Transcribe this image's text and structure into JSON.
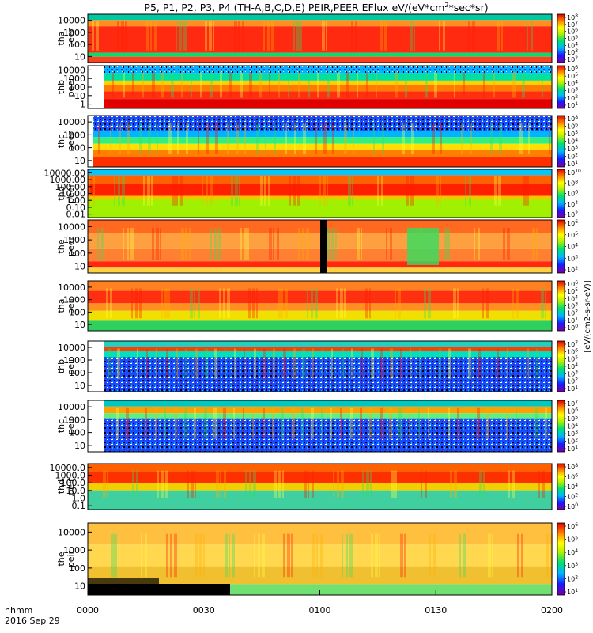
{
  "title": "P5, P1, P2, P3, P4 (TH-A,B,C,D,E) PEIR,PEER EFlux eV/(eV*cm",
  "title_sup": "2",
  "title_tail": "*sec*sr)",
  "colorbar_label": "[eV/(cm2-s-sr-eV)]",
  "time_axis": {
    "label_line1": "hhmm",
    "label_line2": "2016 Sep 29",
    "ticks": [
      "0000",
      "0030",
      "0100",
      "0130",
      "0200"
    ]
  },
  "panels": [
    {
      "probe": "tha",
      "species": "peer",
      "yticks": [
        "10",
        "100",
        "1000",
        "10000"
      ],
      "cbar_ticks": [
        "10",
        "10",
        "10",
        "10",
        "10",
        "10",
        "10"
      ],
      "cbar_exps": [
        "2",
        "3",
        "4",
        "5",
        "6",
        "7",
        "8"
      ]
    },
    {
      "probe": "thb",
      "species": "peer",
      "yticks": [
        "1",
        "10",
        "100",
        "1000",
        "10000"
      ],
      "cbar_ticks": [
        "10",
        "10",
        "10",
        "10",
        "10",
        "10"
      ],
      "cbar_exps": [
        "1",
        "2",
        "3",
        "4",
        "5",
        "6"
      ]
    },
    {
      "probe": "thc",
      "species": "peer",
      "yticks": [
        "10",
        "100",
        "1000",
        "10000"
      ],
      "cbar_ticks": [
        "10",
        "10",
        "10",
        "10",
        "10",
        "10",
        "10"
      ],
      "cbar_exps": [
        "1",
        "2",
        "3",
        "4",
        "5",
        "6",
        "8"
      ]
    },
    {
      "probe": "thd",
      "species": "peer",
      "yticks": [
        "0.01",
        "0.10",
        "1.00",
        "10.00",
        "100.00",
        "1000.00",
        "10000.00"
      ],
      "cbar_ticks": [
        "10",
        "10",
        "10",
        "10",
        "10"
      ],
      "cbar_exps": [
        "2",
        "4",
        "6",
        "8",
        "10"
      ]
    },
    {
      "probe": "the",
      "species": "peer",
      "yticks": [
        "10",
        "100",
        "1000",
        "10000"
      ],
      "cbar_ticks": [
        "10",
        "10",
        "10",
        "10",
        "10"
      ],
      "cbar_exps": [
        "2",
        "3",
        "4",
        "5",
        "6"
      ]
    },
    {
      "probe": "tha",
      "species": "peir",
      "yticks": [
        "10",
        "100",
        "1000",
        "10000"
      ],
      "cbar_ticks": [
        "10",
        "10",
        "10",
        "10",
        "10",
        "10",
        "10"
      ],
      "cbar_exps": [
        "0",
        "1",
        "2",
        "3",
        "4",
        "5",
        "6"
      ]
    },
    {
      "probe": "thb",
      "species": "peir",
      "yticks": [
        "10",
        "100",
        "1000",
        "10000"
      ],
      "cbar_ticks": [
        "10",
        "10",
        "10",
        "10",
        "10",
        "10",
        "10"
      ],
      "cbar_exps": [
        "1",
        "2",
        "3",
        "4",
        "5",
        "6",
        "7"
      ]
    },
    {
      "probe": "thc",
      "species": "peir",
      "yticks": [
        "10",
        "100",
        "1000",
        "10000"
      ],
      "cbar_ticks": [
        "10",
        "10",
        "10",
        "10",
        "10",
        "10",
        "10"
      ],
      "cbar_exps": [
        "1",
        "2",
        "3",
        "4",
        "5",
        "6",
        "7"
      ]
    },
    {
      "probe": "thd",
      "species": "peir",
      "yticks": [
        "0.1",
        "1.0",
        "10.0",
        "100.0",
        "1000.0",
        "10000.0"
      ],
      "cbar_ticks": [
        "10",
        "10",
        "10",
        "10",
        "10"
      ],
      "cbar_exps": [
        "0",
        "2",
        "4",
        "6",
        "8"
      ]
    },
    {
      "probe": "the",
      "species": "peir",
      "yticks": [
        "10",
        "100",
        "1000",
        "10000"
      ],
      "cbar_ticks": [
        "10",
        "10",
        "10",
        "10",
        "10",
        "10"
      ],
      "cbar_exps": [
        "1",
        "2",
        "3",
        "4",
        "5",
        "6"
      ]
    }
  ],
  "chart_data": {
    "type": "heatmap",
    "title": "P5, P1, P2, P3, P4 (TH-A,B,C,D,E) PEIR,PEER EFlux eV/(eV*cm2*sec*sr)",
    "xlabel": "hhmm",
    "x_ticks": [
      "0000",
      "0030",
      "0100",
      "0130",
      "0200"
    ],
    "date": "2016 Sep 29",
    "y_scale": "log",
    "colormap": "rainbow (violet-blue-green-yellow-red)",
    "series": [
      {
        "name": "tha peer",
        "ylabel": "tha peer",
        "yrange": [
          5,
          30000
        ]
      },
      {
        "name": "thb peer",
        "ylabel": "thb peer",
        "yrange": [
          1,
          30000
        ]
      },
      {
        "name": "thc peer",
        "ylabel": "thc peer",
        "yrange": [
          7,
          30000
        ]
      },
      {
        "name": "thd peer",
        "ylabel": "thd peer",
        "yrange": [
          0.01,
          30000
        ]
      },
      {
        "name": "the peer",
        "ylabel": "the peer",
        "yrange": [
          7,
          30000
        ]
      },
      {
        "name": "tha peir",
        "ylabel": "tha peir",
        "yrange": [
          5,
          30000
        ]
      },
      {
        "name": "thb peir",
        "ylabel": "thb peir",
        "yrange": [
          5,
          30000
        ]
      },
      {
        "name": "thc peir",
        "ylabel": "thc peir",
        "yrange": [
          5,
          30000
        ]
      },
      {
        "name": "thd peir",
        "ylabel": "thd peir",
        "yrange": [
          0.05,
          30000
        ]
      },
      {
        "name": "the peir",
        "ylabel": "the peir",
        "yrange": [
          5,
          30000
        ]
      }
    ]
  }
}
